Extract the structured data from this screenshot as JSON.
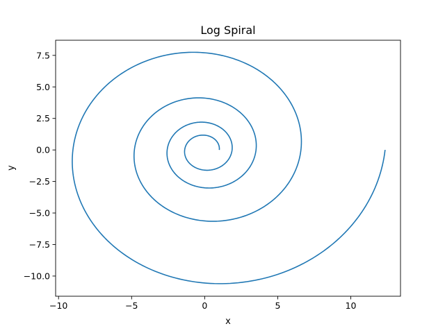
{
  "chart_data": {
    "type": "line",
    "title": "Log Spiral",
    "xlabel": "x",
    "ylabel": "y",
    "xlim": [
      -10.2,
      13.4
    ],
    "ylim": [
      -11.6,
      8.7
    ],
    "grid": false,
    "series": [
      {
        "color": "#1f77b4",
        "equation": "r = a*exp(b*theta)",
        "a": 1.0,
        "b": 0.1,
        "theta_range": [
          0,
          25.133
        ],
        "points": 1000
      }
    ],
    "xticks": [
      -10,
      -5,
      0,
      5,
      10
    ],
    "xtick_labels": [
      "−10",
      "−5",
      "0",
      "5",
      "10"
    ],
    "yticks": [
      7.5,
      5.0,
      2.5,
      0.0,
      -2.5,
      -5.0,
      -7.5,
      -10.0
    ],
    "ytick_labels": [
      "7.5",
      "5.0",
      "2.5",
      "0.0",
      "−2.5",
      "−5.0",
      "−7.5",
      "−10.0"
    ]
  }
}
